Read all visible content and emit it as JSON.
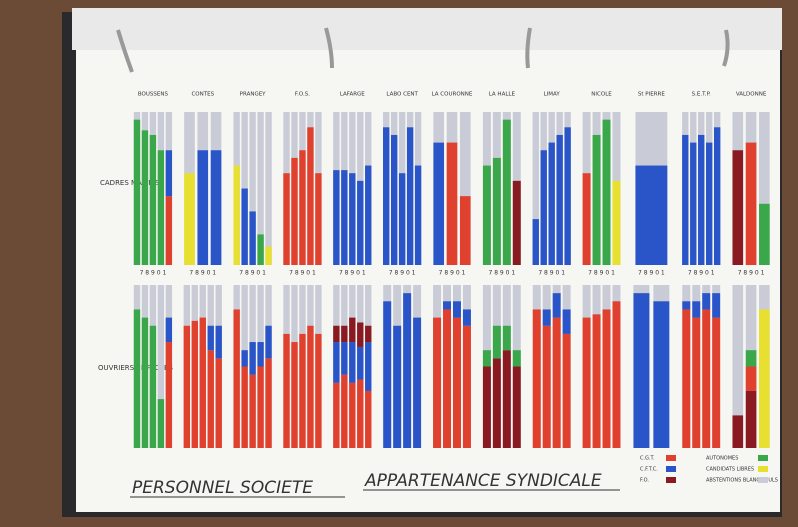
{
  "chart_data": {
    "type": "bar",
    "title": "PERSONNEL SOCIETE",
    "subtitle": "APPARTENANCE SYNDICALE",
    "rows": [
      "CADRES MAITRISE",
      "OUVRIERS EMPLOYES"
    ],
    "year_labels": "7 8 9 0 1",
    "ylim": [
      0,
      100
    ],
    "unions": [
      {
        "name": "C.G.T.",
        "color": "#e0402e"
      },
      {
        "name": "C.F.T.C.",
        "color": "#2a55c8"
      },
      {
        "name": "F.O.",
        "color": "#8a1a22"
      },
      {
        "name": "AUTONOMES",
        "color": "#3aa84a"
      },
      {
        "name": "CANDIDATS LIBRES",
        "color": "#e8e030"
      },
      {
        "name": "ABSTENTIONS BLANCS NULS",
        "color": "#c9ccd6"
      }
    ],
    "groups": [
      {
        "name": "BOUSSENS",
        "top": [
          [
            [
              3,
              95
            ]
          ],
          [
            [
              3,
              88
            ]
          ],
          [
            [
              3,
              85
            ]
          ],
          [
            [
              3,
              75
            ]
          ],
          [
            [
              0,
              45
            ],
            [
              1,
              30
            ]
          ]
        ],
        "bottom": [
          [
            [
              3,
              85
            ]
          ],
          [
            [
              3,
              80
            ]
          ],
          [
            [
              3,
              75
            ]
          ],
          [
            [
              3,
              30
            ]
          ],
          [
            [
              0,
              65
            ],
            [
              1,
              15
            ]
          ]
        ]
      },
      {
        "name": "CONTES",
        "top": [
          [
            [
              4,
              60
            ]
          ],
          [
            [
              1,
              75
            ]
          ],
          [
            [
              1,
              75
            ]
          ]
        ],
        "bottom": [
          [
            [
              0,
              75
            ]
          ],
          [
            [
              0,
              78
            ]
          ],
          [
            [
              0,
              80
            ]
          ],
          [
            [
              0,
              60
            ],
            [
              1,
              15
            ]
          ],
          [
            [
              0,
              55
            ],
            [
              1,
              20
            ]
          ]
        ]
      },
      {
        "name": "PRANGEY",
        "top": [
          [
            [
              4,
              65
            ]
          ],
          [
            [
              1,
              50
            ]
          ],
          [
            [
              1,
              35
            ]
          ],
          [
            [
              3,
              20
            ]
          ],
          [
            [
              4,
              12
            ]
          ]
        ],
        "bottom": [
          [
            [
              0,
              85
            ]
          ],
          [
            [
              0,
              50
            ],
            [
              1,
              10
            ]
          ],
          [
            [
              0,
              45
            ],
            [
              1,
              20
            ]
          ],
          [
            [
              0,
              50
            ],
            [
              1,
              15
            ]
          ],
          [
            [
              0,
              55
            ],
            [
              1,
              20
            ]
          ]
        ]
      },
      {
        "name": "F.O.S.",
        "top": [
          [
            [
              0,
              60
            ]
          ],
          [
            [
              0,
              70
            ]
          ],
          [
            [
              0,
              75
            ]
          ],
          [
            [
              0,
              90
            ]
          ],
          [
            [
              0,
              60
            ]
          ]
        ],
        "bottom": [
          [
            [
              0,
              70
            ]
          ],
          [
            [
              0,
              65
            ]
          ],
          [
            [
              0,
              70
            ]
          ],
          [
            [
              0,
              75
            ]
          ],
          [
            [
              0,
              70
            ]
          ]
        ]
      },
      {
        "name": "LAFARGE",
        "top": [
          [
            [
              1,
              62
            ]
          ],
          [
            [
              1,
              62
            ]
          ],
          [
            [
              1,
              60
            ]
          ],
          [
            [
              1,
              55
            ]
          ],
          [
            [
              1,
              65
            ]
          ]
        ],
        "bottom": [
          [
            [
              0,
              40
            ],
            [
              1,
              25
            ],
            [
              2,
              10
            ]
          ],
          [
            [
              0,
              45
            ],
            [
              1,
              20
            ],
            [
              2,
              10
            ]
          ],
          [
            [
              0,
              40
            ],
            [
              1,
              25
            ],
            [
              2,
              15
            ]
          ],
          [
            [
              0,
              42
            ],
            [
              1,
              20
            ],
            [
              2,
              15
            ]
          ],
          [
            [
              0,
              35
            ],
            [
              1,
              30
            ],
            [
              2,
              10
            ]
          ]
        ]
      },
      {
        "name": "LABO CENT",
        "top": [
          [
            [
              1,
              90
            ]
          ],
          [
            [
              1,
              85
            ]
          ],
          [
            [
              1,
              60
            ]
          ],
          [
            [
              1,
              90
            ]
          ],
          [
            [
              1,
              65
            ]
          ]
        ],
        "bottom": [
          [
            [
              1,
              90
            ]
          ],
          [
            [
              1,
              75
            ]
          ],
          [
            [
              1,
              95
            ]
          ],
          [
            [
              1,
              80
            ]
          ]
        ]
      },
      {
        "name": "LA COURONNE",
        "top": [
          [
            [
              1,
              80
            ]
          ],
          [
            [
              0,
              80
            ]
          ],
          [
            [
              0,
              45
            ]
          ]
        ],
        "bottom": [
          [
            [
              0,
              80
            ]
          ],
          [
            [
              0,
              85
            ],
            [
              1,
              5
            ]
          ],
          [
            [
              0,
              80
            ],
            [
              1,
              10
            ]
          ],
          [
            [
              0,
              75
            ],
            [
              1,
              10
            ]
          ]
        ]
      },
      {
        "name": "LA HALLE",
        "top": [
          [
            [
              3,
              65
            ]
          ],
          [
            [
              3,
              70
            ]
          ],
          [
            [
              3,
              95
            ]
          ],
          [
            [
              2,
              55
            ]
          ]
        ],
        "bottom": [
          [
            [
              2,
              50
            ],
            [
              3,
              10
            ]
          ],
          [
            [
              2,
              55
            ],
            [
              3,
              20
            ]
          ],
          [
            [
              2,
              60
            ],
            [
              3,
              15
            ]
          ],
          [
            [
              2,
              50
            ],
            [
              3,
              10
            ]
          ]
        ]
      },
      {
        "name": "LIMAY",
        "top": [
          [
            [
              1,
              30
            ]
          ],
          [
            [
              1,
              75
            ]
          ],
          [
            [
              1,
              80
            ]
          ],
          [
            [
              1,
              85
            ]
          ],
          [
            [
              1,
              90
            ]
          ]
        ],
        "bottom": [
          [
            [
              0,
              85
            ]
          ],
          [
            [
              0,
              75
            ],
            [
              1,
              10
            ]
          ],
          [
            [
              0,
              80
            ],
            [
              1,
              15
            ]
          ],
          [
            [
              0,
              70
            ],
            [
              1,
              15
            ]
          ]
        ]
      },
      {
        "name": "NICOLE",
        "top": [
          [
            [
              0,
              60
            ]
          ],
          [
            [
              3,
              85
            ]
          ],
          [
            [
              3,
              95
            ]
          ],
          [
            [
              4,
              55
            ]
          ]
        ],
        "bottom": [
          [
            [
              0,
              80
            ]
          ],
          [
            [
              0,
              82
            ]
          ],
          [
            [
              0,
              85
            ]
          ],
          [
            [
              0,
              90
            ]
          ]
        ]
      },
      {
        "name": "St PIERRE",
        "top": [
          [
            [
              1,
              65
            ]
          ]
        ],
        "bottom": [
          [
            [
              1,
              95
            ]
          ],
          [
            [
              1,
              90
            ]
          ]
        ]
      },
      {
        "name": "S.E.T.P.",
        "top": [
          [
            [
              1,
              85
            ]
          ],
          [
            [
              1,
              80
            ]
          ],
          [
            [
              1,
              85
            ]
          ],
          [
            [
              1,
              80
            ]
          ],
          [
            [
              1,
              90
            ]
          ]
        ],
        "bottom": [
          [
            [
              0,
              85
            ],
            [
              1,
              5
            ]
          ],
          [
            [
              0,
              80
            ],
            [
              1,
              10
            ]
          ],
          [
            [
              0,
              85
            ],
            [
              1,
              10
            ]
          ],
          [
            [
              0,
              80
            ],
            [
              1,
              15
            ]
          ]
        ]
      },
      {
        "name": "VALDONNE",
        "top": [
          [
            [
              2,
              75
            ]
          ],
          [
            [
              0,
              80
            ]
          ],
          [
            [
              3,
              40
            ]
          ]
        ],
        "bottom": [
          [
            [
              2,
              20
            ]
          ],
          [
            [
              2,
              35
            ],
            [
              0,
              15
            ],
            [
              3,
              10
            ]
          ],
          [
            [
              4,
              85
            ]
          ]
        ]
      }
    ]
  }
}
